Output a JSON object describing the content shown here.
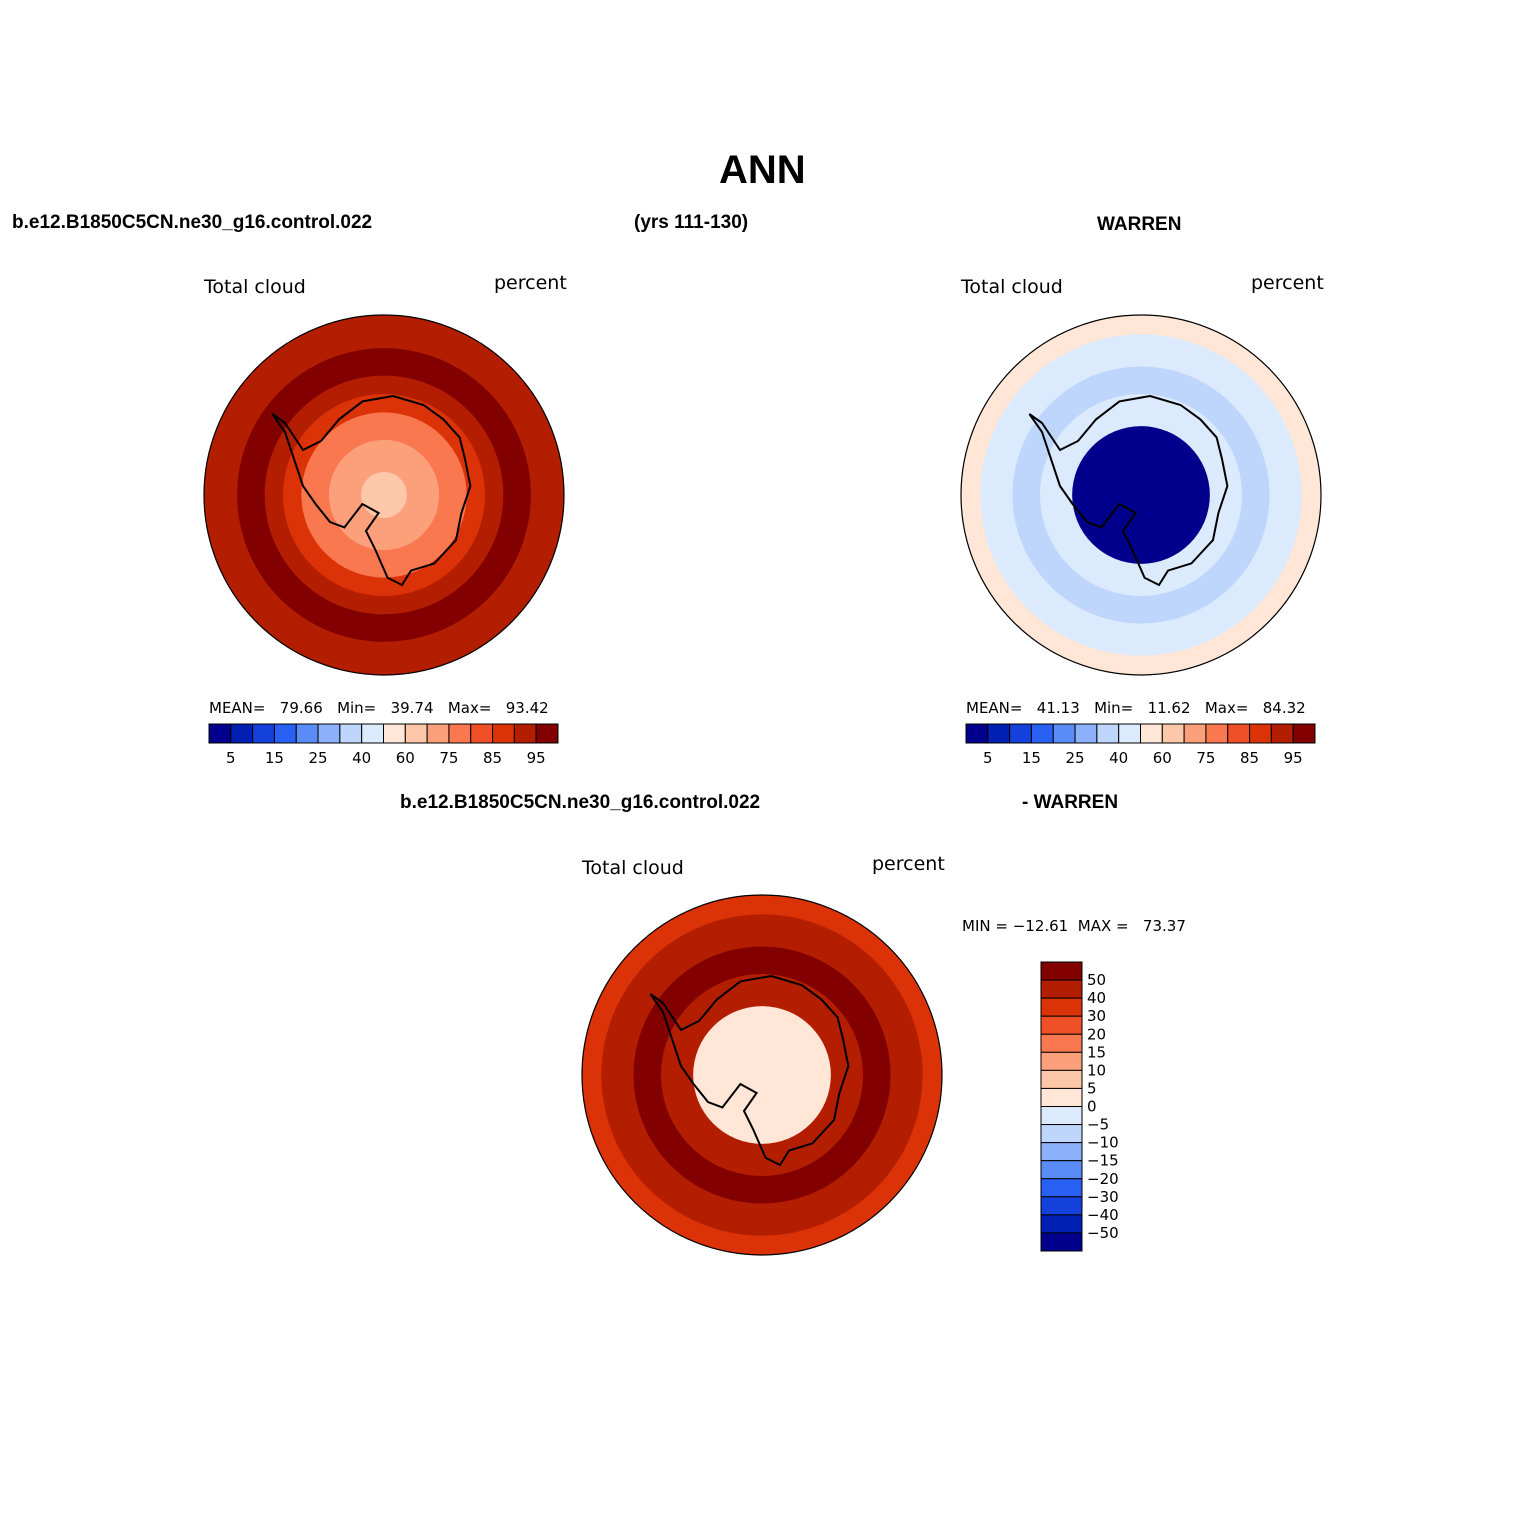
{
  "title": "ANN",
  "headers": {
    "case": "b.e12.B1850C5CN.ne30_g16.control.022",
    "years": "(yrs 111-130)",
    "obs": "WARREN",
    "diff_case": "b.e12.B1850C5CN.ne30_g16.control.022",
    "diff_obs": "- WARREN"
  },
  "colors": {
    "abs_scale": [
      "#00008c",
      "#0020b4",
      "#1440dc",
      "#2860f4",
      "#5a8cf8",
      "#8cb0fa",
      "#bed6fc",
      "#dceafd",
      "#ffe6d6",
      "#fdc8aa",
      "#fca07c",
      "#fa7850",
      "#f05028",
      "#dc3208",
      "#b41e00",
      "#820000"
    ],
    "diff_scale": [
      "#00008c",
      "#0020b4",
      "#1440dc",
      "#2860f4",
      "#5a8cf8",
      "#8cb0fa",
      "#bed6fc",
      "#dceafd",
      "#ffe6d6",
      "#fdc8aa",
      "#fca07c",
      "#fa7850",
      "#f05028",
      "#dc3208",
      "#b41e00",
      "#820000"
    ]
  },
  "chart_data": [
    {
      "type": "heatmap",
      "panel": "model",
      "left_label": "Total cloud",
      "right_label": "percent",
      "stats": {
        "mean_label": "MEAN=",
        "mean": "79.66",
        "min_label": "Min=",
        "min": "39.74",
        "max_label": "Max=",
        "max": "93.42"
      },
      "colorbar_ticks": [
        "5",
        "15",
        "25",
        "40",
        "60",
        "75",
        "85",
        "95"
      ],
      "zones": [
        {
          "lat": -85,
          "value": 60
        },
        {
          "lat": -78,
          "value": 65
        },
        {
          "lat": -72,
          "value": 72
        },
        {
          "lat": -68,
          "value": 82
        },
        {
          "lat": -64,
          "value": 88
        },
        {
          "lat": -58,
          "value": 91
        },
        {
          "lat": -50,
          "value": 89
        }
      ]
    },
    {
      "type": "heatmap",
      "panel": "obs",
      "left_label": "Total cloud",
      "right_label": "percent",
      "stats": {
        "mean_label": "MEAN=",
        "mean": "41.13",
        "min_label": "Min=",
        "min": "11.62",
        "max_label": "Max=",
        "max": "84.32"
      },
      "colorbar_ticks": [
        "5",
        "15",
        "25",
        "40",
        "60",
        "75",
        "85",
        "95"
      ],
      "zones": [
        {
          "lat": -85,
          "value": 0
        },
        {
          "lat": -75,
          "value": 0
        },
        {
          "lat": -68,
          "value": 40
        },
        {
          "lat": -62,
          "value": 35
        },
        {
          "lat": -55,
          "value": 45
        },
        {
          "lat": -50,
          "value": 50
        }
      ]
    },
    {
      "type": "heatmap",
      "panel": "difference",
      "left_label": "Total cloud",
      "right_label": "percent",
      "stats": {
        "min_label": "MIN =",
        "min": "−12.61",
        "max_label": "MAX =",
        "max": "73.37"
      },
      "colorbar_ticks": [
        "50",
        "40",
        "30",
        "20",
        "15",
        "10",
        "5",
        "0",
        "−5",
        "−10",
        "−15",
        "−20",
        "−30",
        "−40",
        "−50"
      ],
      "zones": [
        {
          "lat": -85,
          "value": 0
        },
        {
          "lat": -75,
          "value": 0
        },
        {
          "lat": -68,
          "value": 45
        },
        {
          "lat": -62,
          "value": 50
        },
        {
          "lat": -55,
          "value": 40
        },
        {
          "lat": -50,
          "value": 35
        }
      ]
    }
  ]
}
